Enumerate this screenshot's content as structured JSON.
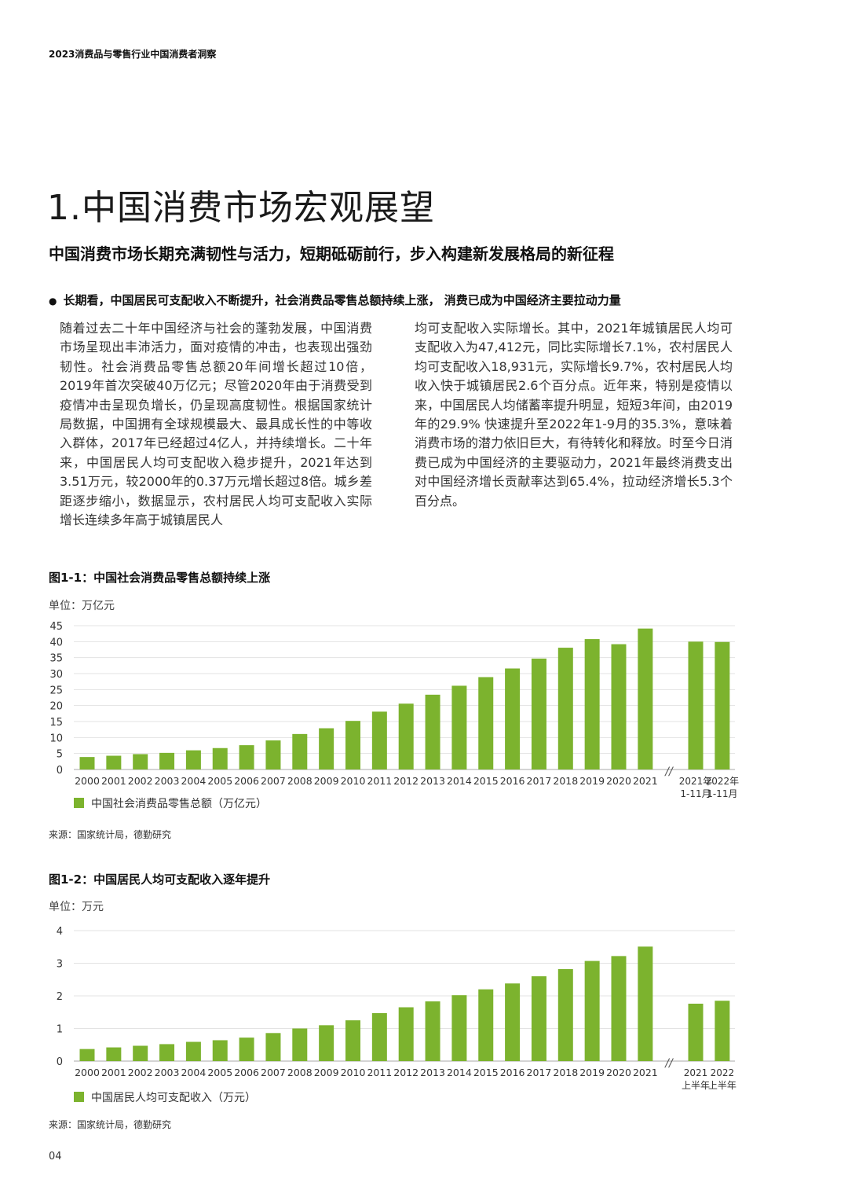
{
  "header": "2023消费品与零售行业中国消费者洞察",
  "title": "1.中国消费市场宏观展望",
  "subtitle": "中国消费市场长期充满韧性与活力，短期砥砺前行，步入构建新发展格局的新征程",
  "bullet": "长期看，中国居民可支配收入不断提升，社会消费品零售总额持续上涨， 消费已成为中国经济主要拉动力量",
  "body_col1": "随着过去二十年中国经济与社会的蓬勃发展，中国消费市场呈现出丰沛活力，面对疫情的冲击，也表现出强劲韧性。社会消费品零售总额20年间增长超过10倍，2019年首次突破40万亿元；尽管2020年由于消费受到疫情冲击呈现负增长，仍呈现高度韧性。根据国家统计局数据，中国拥有全球规模最大、最具成长性的中等收入群体，2017年已经超过4亿人，并持续增长。二十年来，中国居民人均可支配收入稳步提升，2021年达到3.51万元，较2000年的0.37万元增长超过8倍。城乡差距逐步缩小，数据显示，农村居民人均可支配收入实际增长连续多年高于城镇居民人",
  "body_col2": "均可支配收入实际增长。其中，2021年城镇居民人均可支配收入为47,412元，同比实际增长7.1%，农村居民人均可支配收入18,931元，实际增长9.7%，农村居民人均收入快于城镇居民2.6个百分点。近年来，特别是疫情以来，中国居民人均储蓄率提升明显，短短3年间，由2019年的29.9% 快速提升至2022年1-9月的35.3%，意味着消费市场的潜力依旧巨大，有待转化和释放。时至今日消费已成为中国经济的主要驱动力，2021年最终消费支出对中国经济增长贡献率达到65.4%，拉动经济增长5.3个百分点。",
  "figure1": {
    "title": "图1-1：中国社会消费品零售总额持续上涨",
    "unit": "单位：万亿元",
    "source": "来源：国家统计局，德勤研究"
  },
  "figure2": {
    "title": "图1-2：中国居民人均可支配收入逐年提升",
    "unit": "单位：万元",
    "source": "来源：国家统计局，德勤研究"
  },
  "page_number": "04",
  "colors": {
    "bar": "#7cb32e",
    "grid": "#e3e3e3",
    "axis": "#aaaaaa"
  },
  "chart_data": [
    {
      "type": "bar",
      "categories": [
        "2000",
        "2001",
        "2002",
        "2003",
        "2004",
        "2005",
        "2006",
        "2007",
        "2008",
        "2009",
        "2010",
        "2011",
        "2012",
        "2013",
        "2014",
        "2015",
        "2016",
        "2017",
        "2018",
        "2019",
        "2020",
        "2021"
      ],
      "extra_categories": [
        [
          "2021年",
          "1-11月"
        ],
        [
          "2022年",
          "1-11月"
        ]
      ],
      "series": [
        {
          "name": "中国社会消费品零售总额（万亿元）",
          "values": [
            3.9,
            4.3,
            4.8,
            5.2,
            6.0,
            6.7,
            7.6,
            9.1,
            11.1,
            12.9,
            15.2,
            18.1,
            20.6,
            23.4,
            26.2,
            28.9,
            31.6,
            34.7,
            38.1,
            40.8,
            39.2,
            44.1
          ],
          "extra_values": [
            40.0,
            39.9
          ]
        }
      ],
      "yticks": [
        0,
        5,
        10,
        15,
        20,
        25,
        30,
        35,
        40,
        45
      ],
      "ylim": [
        0,
        45
      ],
      "grid": true,
      "legend": "bottom-left",
      "break_mark": "//"
    },
    {
      "type": "bar",
      "categories": [
        "2000",
        "2001",
        "2002",
        "2003",
        "2004",
        "2005",
        "2006",
        "2007",
        "2008",
        "2009",
        "2010",
        "2011",
        "2012",
        "2013",
        "2014",
        "2015",
        "2016",
        "2017",
        "2018",
        "2019",
        "2020",
        "2021"
      ],
      "extra_categories": [
        [
          "2021",
          "上半年"
        ],
        [
          "2022",
          "上半年"
        ]
      ],
      "series": [
        {
          "name": "中国居民人均可支配收入（万元）",
          "values": [
            0.37,
            0.42,
            0.47,
            0.52,
            0.59,
            0.64,
            0.72,
            0.86,
            1.0,
            1.1,
            1.25,
            1.47,
            1.65,
            1.83,
            2.02,
            2.2,
            2.38,
            2.6,
            2.82,
            3.07,
            3.22,
            3.51
          ],
          "extra_values": [
            1.76,
            1.85
          ]
        }
      ],
      "yticks": [
        0,
        1,
        2,
        3,
        4
      ],
      "ylim": [
        0,
        4
      ],
      "grid": true,
      "legend": "bottom-left",
      "break_mark": "//"
    }
  ]
}
